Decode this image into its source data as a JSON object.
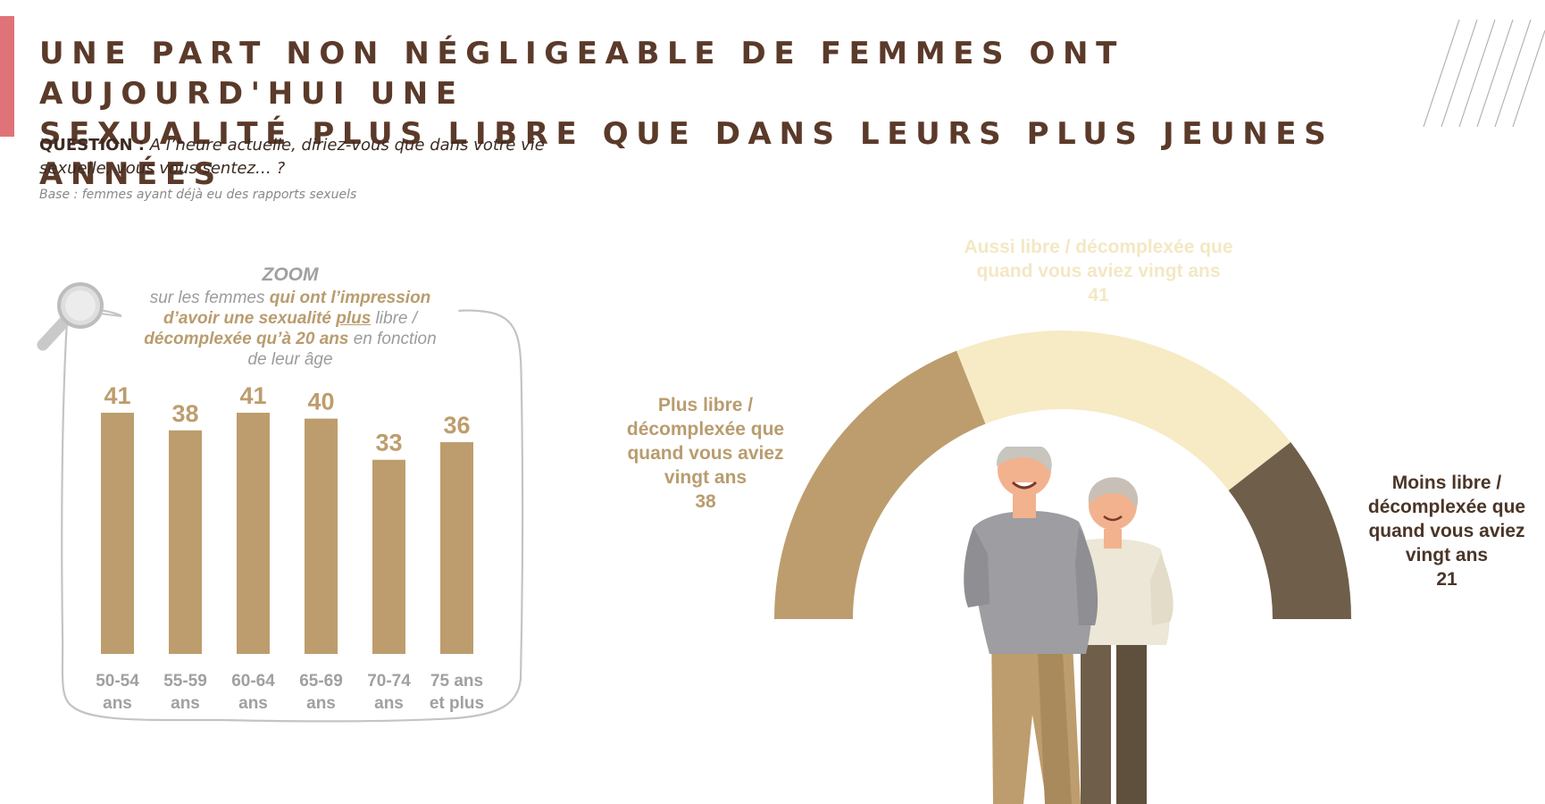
{
  "title": {
    "line1": "UNE PART NON NÉGLIGEABLE DE FEMMES ONT AUJOURD'HUI UNE",
    "line2": "SEXUALITÉ PLUS LIBRE QUE DANS LEURS PLUS JEUNES ANNÉES"
  },
  "question": {
    "label": "QUESTION :",
    "text": "A l’heure actuelle, diriez-vous que dans votre vie sexuelle, vous vous sentez… ?"
  },
  "base": "Base : femmes ayant déjà eu des rapports sexuels",
  "zoom": {
    "title": "ZOOM",
    "desc_part1": "sur les femmes ",
    "desc_hl1": "qui ont l’impression d’avoir une sexualité ",
    "desc_ul": "plus",
    "desc_part2": " libre / ",
    "desc_hl2": "décomplexée qu’à 20 ans",
    "desc_part3": " en fonction de leur âge"
  },
  "colors": {
    "accent": "#e07378",
    "title": "#5b3a2a",
    "bar": "#bd9d6d",
    "more": "#bd9d6d",
    "same": "#f7ebc5",
    "less": "#6f5e4a",
    "axis_label": "#a0a0a0"
  },
  "chart_data": [
    {
      "type": "bar",
      "categories": [
        "50-54 ans",
        "55-59 ans",
        "60-64 ans",
        "65-69 ans",
        "70-74 ans",
        "75 ans et plus"
      ],
      "category_lines": [
        [
          "50-54",
          "ans"
        ],
        [
          "55-59",
          "ans"
        ],
        [
          "60-64",
          "ans"
        ],
        [
          "65-69",
          "ans"
        ],
        [
          "70-74",
          "ans"
        ],
        [
          "75 ans",
          "et plus"
        ]
      ],
      "values": [
        41,
        38,
        41,
        40,
        33,
        36
      ],
      "ylim": [
        0,
        41
      ],
      "grid": false,
      "data_labels": true
    },
    {
      "type": "pie",
      "style": "semi-donut",
      "slices": [
        {
          "label_lines": [
            "Plus libre /",
            "décomplexée que",
            "quand vous aviez",
            "vingt ans"
          ],
          "value": 38,
          "color": "#bd9d6d"
        },
        {
          "label_lines": [
            "Aussi libre / décomplexée que",
            "quand vous aviez vingt ans"
          ],
          "value": 41,
          "color": "#f7ebc5"
        },
        {
          "label_lines": [
            "Moins libre /",
            "décomplexée que",
            "quand vous aviez",
            "vingt ans"
          ],
          "value": 21,
          "color": "#6f5e4a"
        }
      ]
    }
  ]
}
